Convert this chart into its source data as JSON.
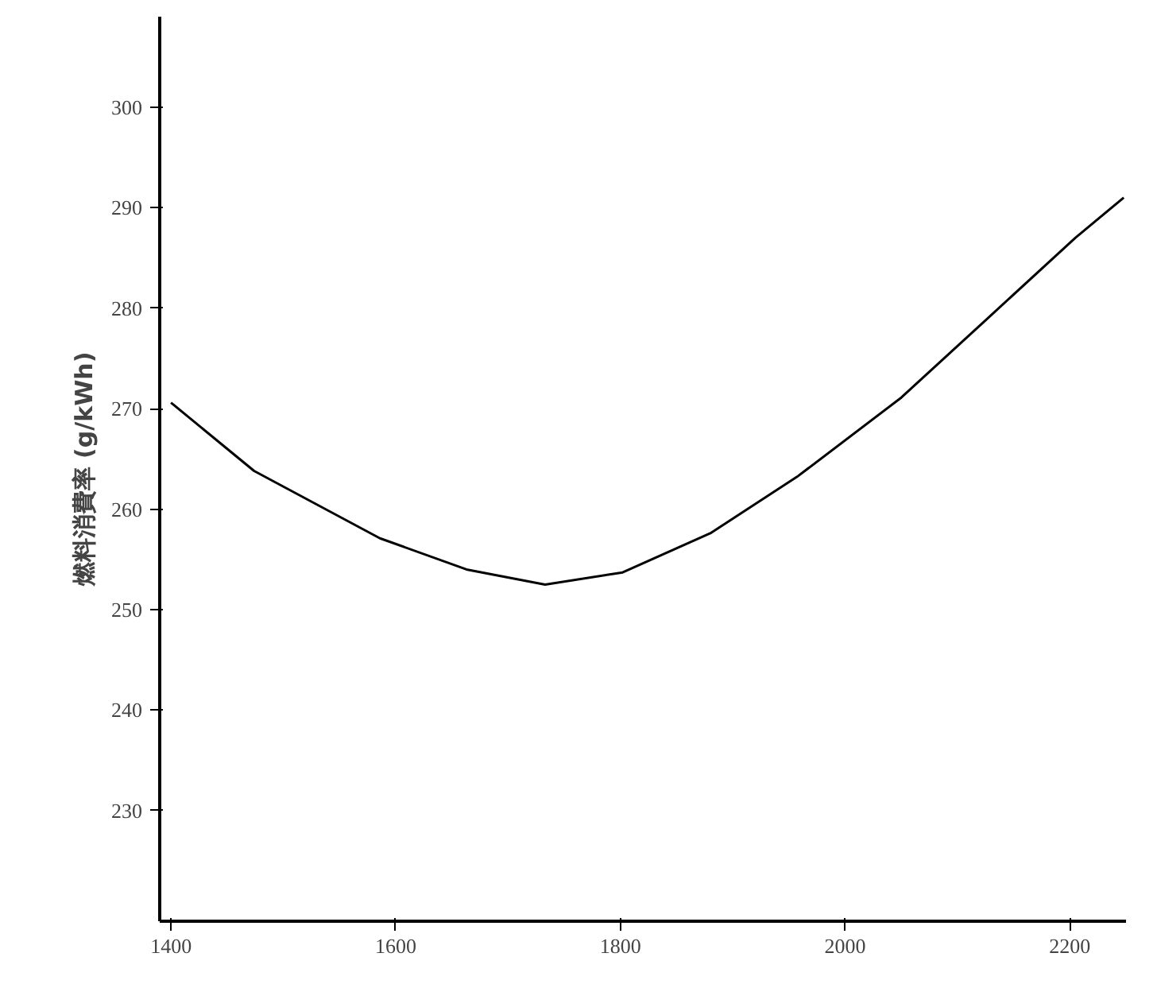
{
  "chart_data": {
    "type": "line",
    "ylabel": "燃料消費率 (g/kWh)",
    "x": [
      1400,
      1474,
      1586,
      1663,
      1733,
      1802,
      1880,
      1957,
      2050,
      2127,
      2205,
      2248
    ],
    "series": [
      {
        "color": "#000000",
        "values": [
          270.6,
          263.8,
          257.1,
          254,
          252.5,
          253.7,
          257.6,
          263.2,
          271.1,
          279,
          287,
          291
        ]
      }
    ],
    "xlim": [
      1390,
      2250
    ],
    "ylim": [
      219,
      309
    ],
    "xticks": [
      1400,
      1600,
      1800,
      2000,
      2200
    ],
    "yticks": [
      230,
      240,
      250,
      260,
      270,
      280,
      290,
      300
    ],
    "grid": false,
    "marker": "none",
    "line_style": "solid"
  }
}
